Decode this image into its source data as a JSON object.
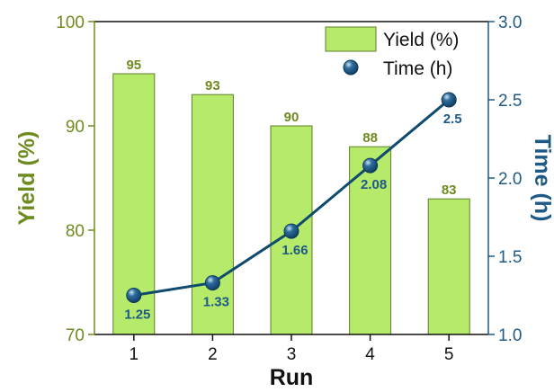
{
  "colors": {
    "bar_fill": "#b5ea6a",
    "bar_stroke": "#5f7d2b",
    "left_axis": "#6e8b1f",
    "line": "#0f4b6e",
    "marker": "#0d3a5c",
    "point_label": "#1f5a87",
    "right_axis": "#1e5a86",
    "frame": "#111111"
  },
  "chart_data": {
    "type": "bar",
    "xlabel": "Run",
    "categories": [
      "1",
      "2",
      "3",
      "4",
      "5"
    ],
    "series": [
      {
        "name": "Yield (%)",
        "type": "bar",
        "axis": "left",
        "values": [
          95,
          93,
          90,
          88,
          83
        ],
        "labels": [
          "95",
          "93",
          "90",
          "88",
          "83"
        ]
      },
      {
        "name": "Time (h)",
        "type": "line",
        "axis": "right",
        "values": [
          1.25,
          1.33,
          1.66,
          2.08,
          2.5
        ],
        "labels": [
          "1.25",
          "1.33",
          "1.66",
          "2.08",
          "2.5"
        ]
      }
    ],
    "y_left": {
      "label": "Yield (%)",
      "ylim": [
        70,
        100
      ],
      "ticks": [
        70,
        80,
        90,
        100
      ],
      "tick_labels": [
        "70",
        "80",
        "90",
        "100"
      ]
    },
    "y_right": {
      "label": "Time (h)",
      "ylim": [
        1.0,
        3.0
      ],
      "ticks": [
        1.0,
        1.5,
        2.0,
        2.5,
        3.0
      ],
      "tick_labels": [
        "1.0",
        "1.5",
        "2.0",
        "2.5",
        "3.0"
      ]
    },
    "legend": {
      "placement": "top-right",
      "entries": [
        "Yield (%)",
        "Time (h)"
      ]
    },
    "grid": false
  }
}
